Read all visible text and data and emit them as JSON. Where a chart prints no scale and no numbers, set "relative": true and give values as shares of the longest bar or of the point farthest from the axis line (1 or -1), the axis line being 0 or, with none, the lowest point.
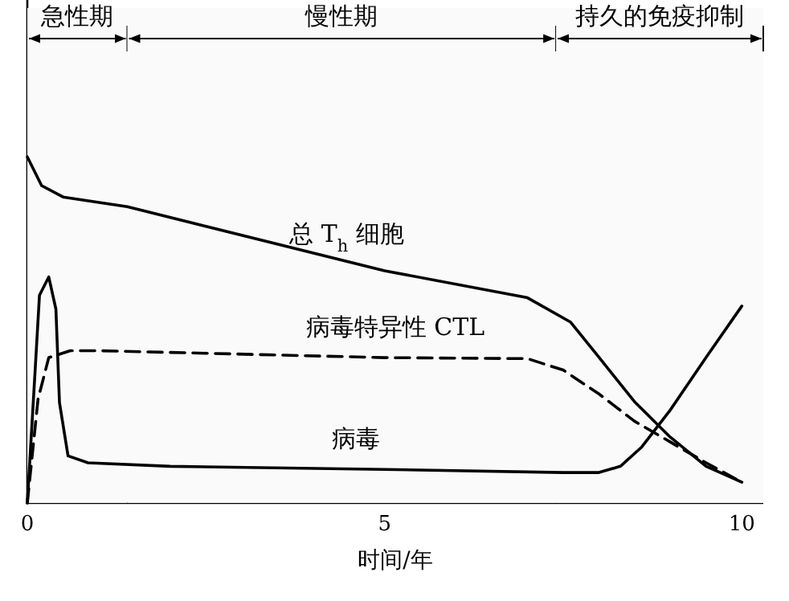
{
  "chart_data": {
    "type": "line",
    "relative": true,
    "xlabel": "时间/年",
    "xlim": [
      0,
      10.3
    ],
    "xticks": [
      0,
      5,
      10
    ],
    "bands": [
      {
        "axis": "x",
        "from": 0,
        "to": 1.4,
        "label": "急性期",
        "color": "#fafafa"
      },
      {
        "axis": "x",
        "from": 1.4,
        "to": 7.4,
        "label": "慢性期",
        "color": "#fafafa"
      },
      {
        "axis": "x",
        "from": 7.4,
        "to": 10.3,
        "label": "持久的免疫抑制",
        "color": "#fafafa"
      }
    ],
    "series": [
      {
        "name": "总 T$_{h}$ 细胞",
        "color": "#000000",
        "line_style": "solid",
        "x": [
          0,
          0.2,
          0.5,
          1.4,
          5,
          7,
          7.6,
          8,
          8.5,
          9,
          9.5,
          10
        ],
        "values": [
          1,
          0.917,
          0.884,
          0.856,
          0.671,
          0.593,
          0.523,
          0.421,
          0.292,
          0.19,
          0.106,
          0.06
        ]
      },
      {
        "name": "病毒特异性 CTL",
        "color": "#000000",
        "line_style": "dashed",
        "x": [
          0,
          0.15,
          0.3,
          0.6,
          1,
          5,
          7,
          7.5,
          8,
          8.5,
          9,
          9.5,
          10
        ],
        "values": [
          0,
          0.3,
          0.42,
          0.44,
          0.44,
          0.42,
          0.417,
          0.384,
          0.315,
          0.236,
          0.176,
          0.116,
          0.06
        ]
      },
      {
        "name": "病毒",
        "color": "#000000",
        "line_style": "solid",
        "x": [
          0,
          0.1,
          0.17,
          0.3,
          0.4,
          0.45,
          0.57,
          0.85,
          2,
          5,
          7.5,
          8,
          8.3,
          8.6,
          9,
          9.5,
          10
        ],
        "values": [
          0,
          0.35,
          0.6,
          0.653,
          0.56,
          0.29,
          0.136,
          0.116,
          0.106,
          0.097,
          0.088,
          0.088,
          0.106,
          0.162,
          0.269,
          0.421,
          0.569
        ]
      }
    ]
  }
}
